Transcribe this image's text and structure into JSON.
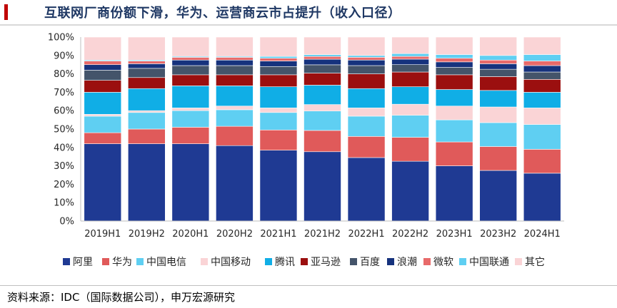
{
  "page": {
    "title": "互联网厂商份额下滑，华为、运营商云市占提升（收入口径）",
    "source_note": "资料来源：IDC（国际数据公司），申万宏源研究"
  },
  "chart_data": {
    "type": "bar",
    "stacked": true,
    "percent": true,
    "categories": [
      "2019H1",
      "2019H2",
      "2020H1",
      "2020H2",
      "2021H1",
      "2021H2",
      "2022H1",
      "2022H2",
      "2023H1",
      "2023H2",
      "2024H1"
    ],
    "ylim": [
      0,
      100
    ],
    "yticks": [
      "0%",
      "10%",
      "20%",
      "30%",
      "40%",
      "50%",
      "60%",
      "70%",
      "80%",
      "90%",
      "100%"
    ],
    "grid": false,
    "legend_position": "bottom",
    "series": [
      {
        "name": "阿里",
        "color": "#1f3a93",
        "values": [
          42.0,
          42.0,
          42.0,
          41.0,
          38.5,
          37.5,
          34.5,
          32.5,
          30.0,
          27.5,
          26.0
        ]
      },
      {
        "name": "华为",
        "color": "#e05a5a",
        "values": [
          6.0,
          8.0,
          9.0,
          10.5,
          11.0,
          11.5,
          11.5,
          13.0,
          13.0,
          13.0,
          13.0
        ]
      },
      {
        "name": "中国电信",
        "color": "#5fcff2",
        "values": [
          9.0,
          9.0,
          9.0,
          9.0,
          9.5,
          10.5,
          11.0,
          12.0,
          12.0,
          13.0,
          13.5
        ]
      },
      {
        "name": "中国移动",
        "color": "#fad4d6",
        "values": [
          1.0,
          1.0,
          1.5,
          2.0,
          2.5,
          3.5,
          4.5,
          6.0,
          7.5,
          8.5,
          9.0
        ]
      },
      {
        "name": "腾讯",
        "color": "#10aee6",
        "values": [
          12.0,
          12.0,
          12.0,
          11.0,
          11.5,
          10.5,
          10.5,
          9.5,
          9.0,
          9.0,
          8.5
        ]
      },
      {
        "name": "亚马逊",
        "color": "#9b0f0f",
        "values": [
          6.5,
          6.0,
          6.0,
          6.0,
          6.5,
          6.5,
          8.0,
          8.0,
          8.0,
          7.5,
          7.0
        ]
      },
      {
        "name": "百度",
        "color": "#44546a",
        "values": [
          5.5,
          5.0,
          5.0,
          5.0,
          4.5,
          4.5,
          4.5,
          4.0,
          4.0,
          4.0,
          4.0
        ]
      },
      {
        "name": "浪潮",
        "color": "#16327d",
        "values": [
          3.0,
          2.5,
          3.0,
          3.0,
          3.0,
          3.0,
          3.0,
          3.0,
          3.0,
          3.0,
          3.5
        ]
      },
      {
        "name": "微软",
        "color": "#e86a6a",
        "values": [
          2.0,
          1.5,
          1.5,
          1.5,
          1.5,
          1.5,
          1.5,
          1.5,
          2.0,
          2.0,
          2.5
        ]
      },
      {
        "name": "中国联通",
        "color": "#5fcff2",
        "values": [
          0.5,
          0.5,
          0.5,
          0.5,
          1.0,
          1.0,
          1.0,
          1.5,
          2.0,
          2.5,
          3.5
        ]
      },
      {
        "name": "其它",
        "color": "#fad4d6",
        "values": [
          12.5,
          12.5,
          10.5,
          10.5,
          10.5,
          9.5,
          10.0,
          9.0,
          9.5,
          10.0,
          9.5
        ]
      }
    ]
  }
}
